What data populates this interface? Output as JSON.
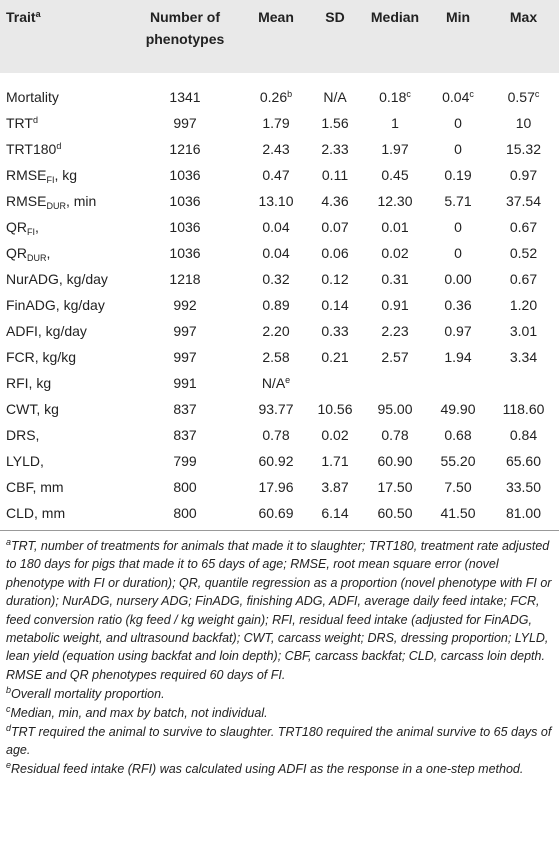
{
  "table": {
    "header": [
      {
        "text": "Trait",
        "sup": "a"
      },
      "Number of phenotypes",
      "Mean",
      "SD",
      "Median",
      "Min",
      "Max"
    ],
    "rows": [
      [
        "Mortality",
        "1341",
        {
          "text": "0.26",
          "sup": "b"
        },
        "N/A",
        {
          "text": "0.18",
          "sup": "c"
        },
        {
          "text": "0.04",
          "sup": "c"
        },
        {
          "text": "0.57",
          "sup": "c"
        }
      ],
      [
        {
          "text": "TRT",
          "sup": "d"
        },
        "997",
        "1.79",
        "1.56",
        "1",
        "0",
        "10"
      ],
      [
        {
          "text": "TRT180",
          "sup": "d"
        },
        "1216",
        "2.43",
        "2.33",
        "1.97",
        "0",
        "15.32"
      ],
      [
        {
          "text": "RMSE",
          "sub": "FI",
          "after": ", kg"
        },
        "1036",
        "0.47",
        "0.11",
        "0.45",
        "0.19",
        "0.97"
      ],
      [
        {
          "text": "RMSE",
          "sub": "DUR",
          "after": ", min"
        },
        "1036",
        "13.10",
        "4.36",
        "12.30",
        "5.71",
        "37.54"
      ],
      [
        {
          "text": "QR",
          "sub": "FI",
          "after": ","
        },
        "1036",
        "0.04",
        "0.07",
        "0.01",
        "0",
        "0.67"
      ],
      [
        {
          "text": "QR",
          "sub": "DUR",
          "after": ","
        },
        "1036",
        "0.04",
        "0.06",
        "0.02",
        "0",
        "0.52"
      ],
      [
        "NurADG, kg/day",
        "1218",
        "0.32",
        "0.12",
        "0.31",
        "0.00",
        "0.67"
      ],
      [
        "FinADG, kg/day",
        "992",
        "0.89",
        "0.14",
        "0.91",
        "0.36",
        "1.20"
      ],
      [
        "ADFI, kg/day",
        "997",
        "2.20",
        "0.33",
        "2.23",
        "0.97",
        "3.01"
      ],
      [
        "FCR, kg/kg",
        "997",
        "2.58",
        "0.21",
        "2.57",
        "1.94",
        "3.34"
      ],
      [
        "RFI, kg",
        "991",
        {
          "text": "N/A",
          "sup": "e"
        },
        null,
        null,
        null,
        null
      ],
      [
        "CWT, kg",
        "837",
        "93.77",
        "10.56",
        "95.00",
        "49.90",
        "118.60"
      ],
      [
        "DRS,",
        "837",
        "0.78",
        "0.02",
        "0.78",
        "0.68",
        "0.84"
      ],
      [
        "LYLD,",
        "799",
        "60.92",
        "1.71",
        "60.90",
        "55.20",
        "65.60"
      ],
      [
        "CBF, mm",
        "800",
        "17.96",
        "3.87",
        "17.50",
        "7.50",
        "33.50"
      ],
      [
        "CLD, mm",
        "800",
        "60.69",
        "6.14",
        "60.50",
        "41.50",
        "81.00"
      ]
    ]
  },
  "footnotes": [
    {
      "sup": "a",
      "text": "TRT, number of treatments for animals that made it to slaughter; TRT180, treatment rate adjusted to 180 days for pigs that made it to 65 days of age; RMSE, root mean square error (novel phenotype with FI or duration); QR, quantile regression as a proportion (novel phenotype with FI or duration); NurADG, nursery ADG; FinADG, finishing ADG, ADFI, average daily feed intake; FCR, feed conversion ratio (kg feed / kg weight gain); RFI, residual feed intake (adjusted for FinADG, metabolic weight, and ultrasound backfat); CWT, carcass weight; DRS, dressing proportion; LYLD, lean yield (equation using backfat and loin depth); CBF, carcass backfat; CLD, carcass loin depth. RMSE and QR phenotypes required 60 days of FI."
    },
    {
      "sup": "b",
      "text": "Overall mortality proportion."
    },
    {
      "sup": "c",
      "text": "Median, min, and max by batch, not individual."
    },
    {
      "sup": "d",
      "text": "TRT required the animal to survive to slaughter. TRT180 required the animal survive to 65 days of age."
    },
    {
      "sup": "e",
      "text": "Residual feed intake (RFI) was calculated using ADFI as the response in a one-step method."
    }
  ]
}
